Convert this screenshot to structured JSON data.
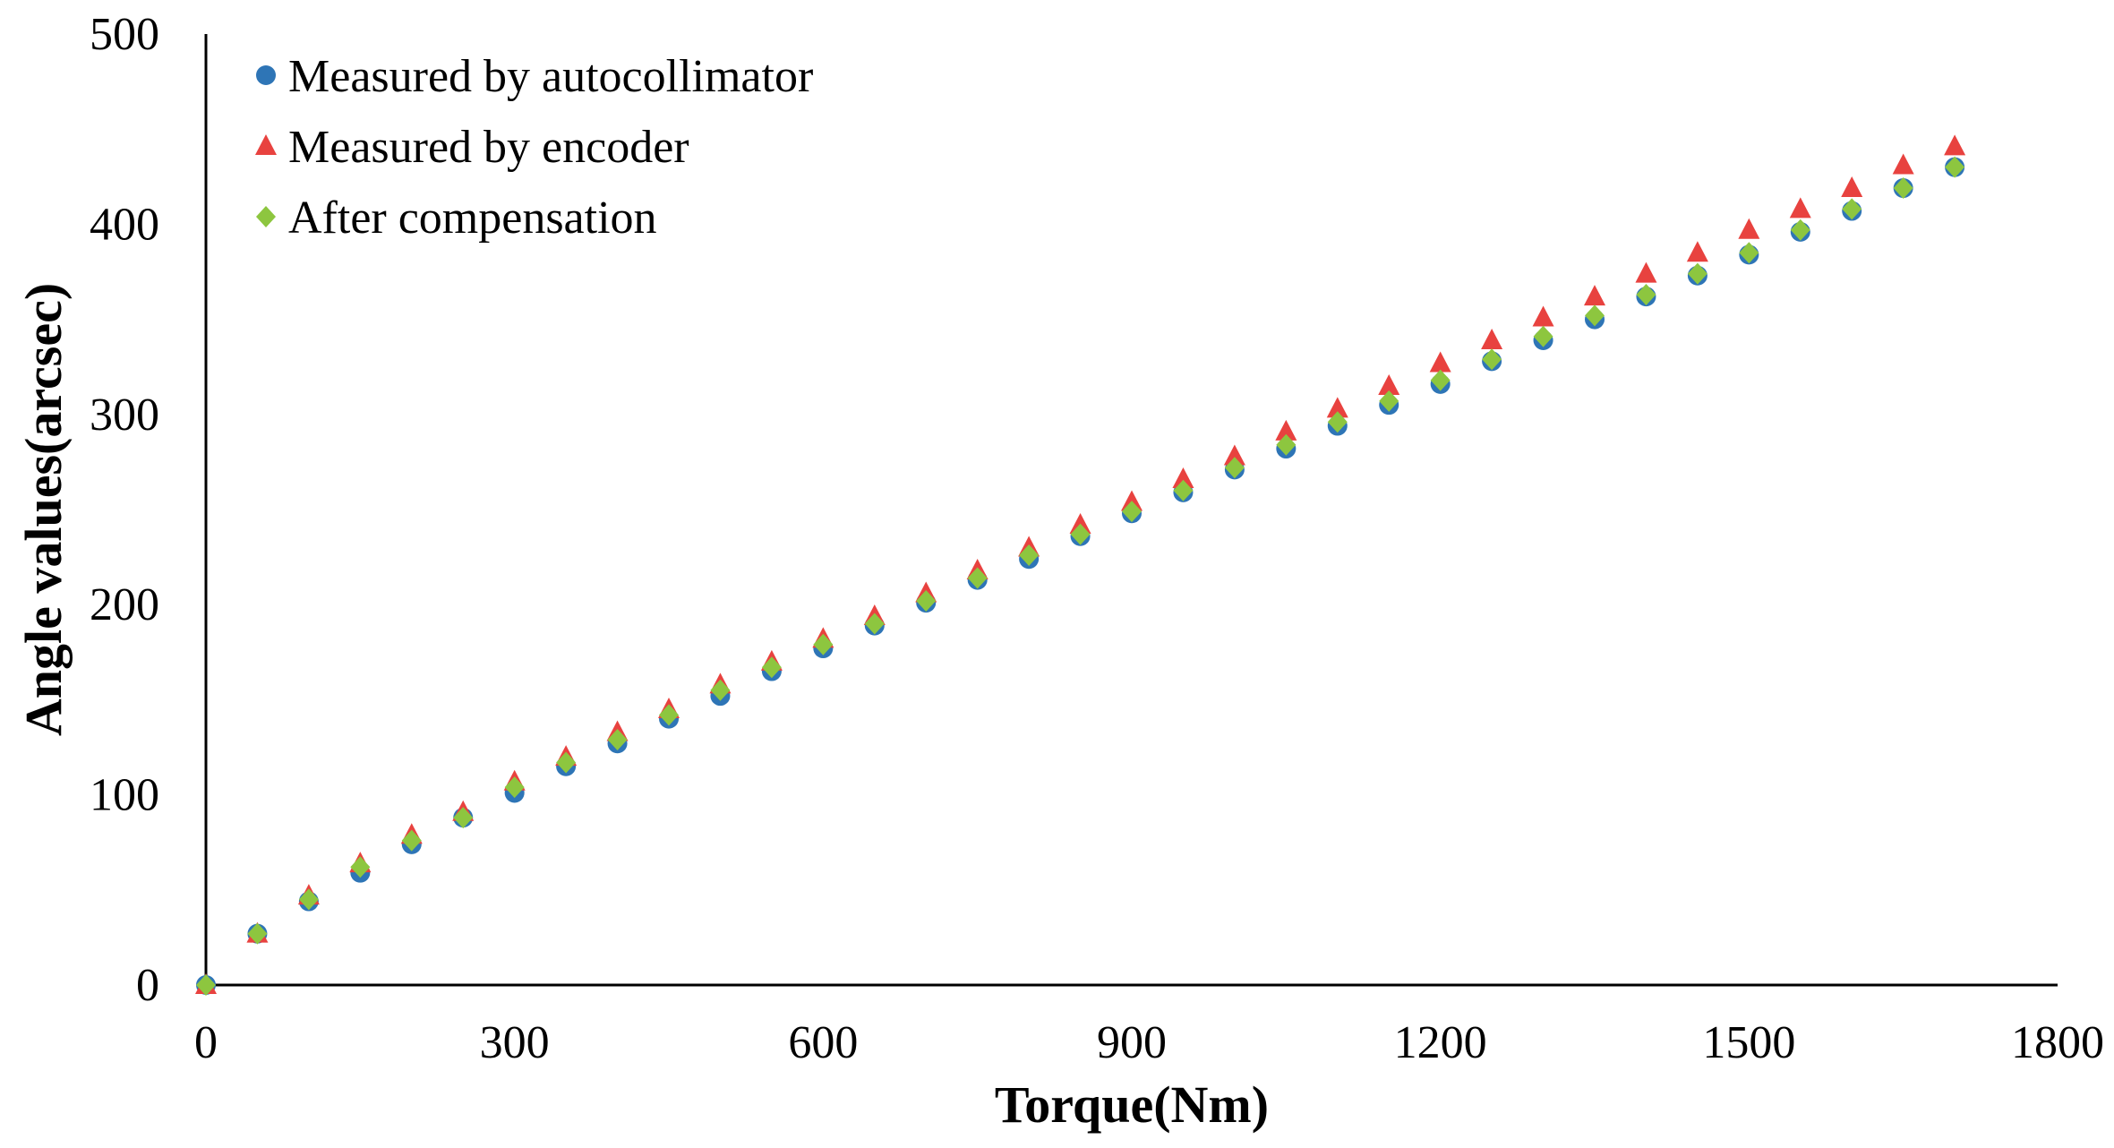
{
  "chart_data": {
    "type": "scatter",
    "title": "",
    "xlabel": "Torque(Nm)",
    "ylabel": "Angle values(arcsec)",
    "xlim": [
      0,
      1800
    ],
    "ylim": [
      0,
      500
    ],
    "xticks": [
      0,
      300,
      600,
      900,
      1200,
      1500,
      1800
    ],
    "yticks": [
      0,
      100,
      200,
      300,
      400,
      500
    ],
    "xtick_labels": [
      "0",
      "300",
      "600",
      "900",
      "1200",
      "1500",
      "1800"
    ],
    "ytick_labels": [
      "0",
      "100",
      "200",
      "300",
      "400",
      "500"
    ],
    "grid": false,
    "legend_position": "top-left",
    "x": [
      0,
      50,
      100,
      150,
      200,
      250,
      300,
      350,
      400,
      450,
      500,
      550,
      600,
      650,
      700,
      750,
      800,
      850,
      900,
      950,
      1000,
      1050,
      1100,
      1150,
      1200,
      1250,
      1300,
      1350,
      1400,
      1450,
      1500,
      1550,
      1600,
      1650,
      1700
    ],
    "series": [
      {
        "name": "Measured by autocollimator",
        "marker": "circle",
        "color": "#2E75B6",
        "values": [
          0,
          27,
          44,
          59,
          74,
          88,
          101,
          115,
          127,
          140,
          152,
          165,
          177,
          189,
          201,
          213,
          224,
          236,
          248,
          259,
          271,
          282,
          294,
          305,
          316,
          328,
          339,
          350,
          362,
          373,
          384,
          396,
          407,
          419,
          430
        ]
      },
      {
        "name": "Measured by encoder",
        "marker": "triangle",
        "color": "#E8423F",
        "values": [
          0,
          27,
          47,
          64,
          79,
          91,
          107,
          120,
          133,
          145,
          158,
          170,
          182,
          194,
          206,
          218,
          230,
          242,
          254,
          266,
          278,
          291,
          303,
          315,
          327,
          339,
          351,
          362,
          374,
          385,
          397,
          408,
          419,
          431,
          441
        ]
      },
      {
        "name": "After compensation",
        "marker": "diamond",
        "color": "#8DC63F",
        "values": [
          0,
          27,
          45,
          62,
          76,
          88,
          104,
          117,
          129,
          142,
          155,
          167,
          179,
          190,
          202,
          214,
          226,
          237,
          249,
          260,
          272,
          284,
          296,
          307,
          318,
          329,
          341,
          352,
          363,
          374,
          385,
          397,
          408,
          419,
          430
        ]
      }
    ]
  }
}
